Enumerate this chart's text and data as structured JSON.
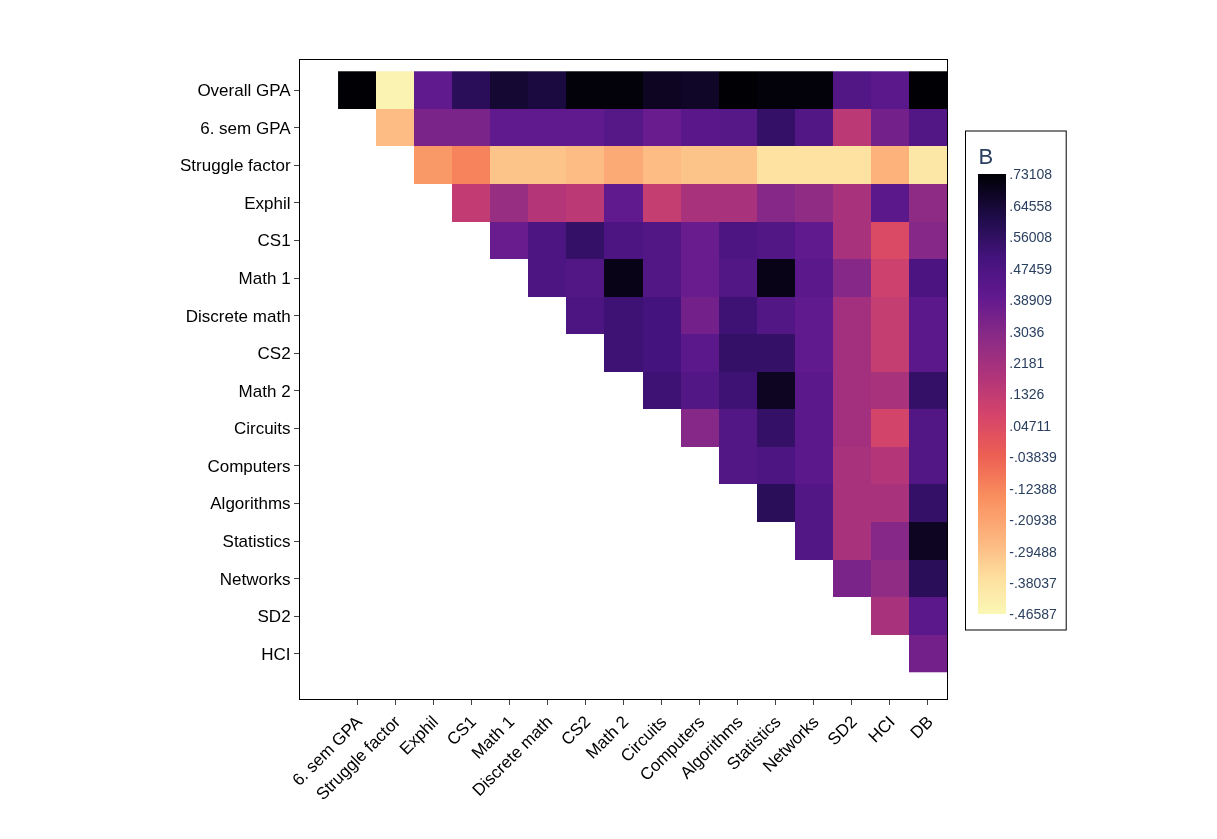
{
  "chart_data": {
    "type": "heatmap",
    "clabel": "B",
    "categories": [
      "6. sem GPA",
      "Struggle factor",
      "Exphil",
      "CS1",
      "Math 1",
      "Discrete math",
      "CS2",
      "Math 2",
      "Circuits",
      "Computers",
      "Algorithms",
      "Statistics",
      "Networks",
      "SD2",
      "HCI",
      "DB"
    ],
    "y_categories": [
      "Overall GPA",
      "6. sem GPA",
      "Struggle factor",
      "Exphil",
      "CS1",
      "Math 1",
      "Discrete math",
      "CS2",
      "Math 2",
      "Circuits",
      "Computers",
      "Algorithms",
      "Statistics",
      "Networks",
      "SD2",
      "HCI"
    ],
    "cells": [
      [
        0.73,
        -0.45,
        0.4,
        0.58,
        0.65,
        0.63,
        0.72,
        0.72,
        0.68,
        0.67,
        0.73,
        0.72,
        0.72,
        0.45,
        0.42,
        0.73
      ],
      [
        null,
        -0.28,
        0.33,
        0.33,
        0.4,
        0.4,
        0.4,
        0.44,
        0.38,
        0.43,
        0.44,
        0.55,
        0.45,
        0.15,
        0.35,
        0.45
      ],
      [
        null,
        null,
        -0.18,
        -0.12,
        -0.3,
        -0.3,
        -0.28,
        -0.23,
        -0.28,
        -0.3,
        -0.3,
        -0.38,
        -0.38,
        -0.38,
        -0.25,
        -0.4
      ],
      [
        null,
        null,
        null,
        0.13,
        0.25,
        0.17,
        0.15,
        0.4,
        0.12,
        0.2,
        0.2,
        0.3,
        0.27,
        0.2,
        0.42,
        0.28
      ],
      [
        null,
        null,
        null,
        null,
        0.38,
        0.47,
        0.55,
        0.47,
        0.45,
        0.38,
        0.47,
        0.45,
        0.4,
        0.2,
        0.05,
        0.3
      ],
      [
        null,
        null,
        null,
        null,
        null,
        0.47,
        0.45,
        0.7,
        0.45,
        0.38,
        0.45,
        0.7,
        0.42,
        0.3,
        0.1,
        0.48
      ],
      [
        null,
        null,
        null,
        null,
        null,
        null,
        0.47,
        0.52,
        0.5,
        0.35,
        0.52,
        0.45,
        0.4,
        0.22,
        0.12,
        0.42
      ],
      [
        null,
        null,
        null,
        null,
        null,
        null,
        null,
        0.52,
        0.5,
        0.42,
        0.55,
        0.55,
        0.4,
        0.22,
        0.12,
        0.42
      ],
      [
        null,
        null,
        null,
        null,
        null,
        null,
        null,
        null,
        0.52,
        0.45,
        0.52,
        0.68,
        0.42,
        0.22,
        0.2,
        0.55
      ],
      [
        null,
        null,
        null,
        null,
        null,
        null,
        null,
        null,
        null,
        0.3,
        0.45,
        0.55,
        0.42,
        0.22,
        0.08,
        0.45
      ],
      [
        null,
        null,
        null,
        null,
        null,
        null,
        null,
        null,
        null,
        null,
        0.45,
        0.47,
        0.42,
        0.2,
        0.17,
        0.45
      ],
      [
        null,
        null,
        null,
        null,
        null,
        null,
        null,
        null,
        null,
        null,
        null,
        0.58,
        0.45,
        0.2,
        0.2,
        0.55
      ],
      [
        null,
        null,
        null,
        null,
        null,
        null,
        null,
        null,
        null,
        null,
        null,
        null,
        0.45,
        0.2,
        0.3,
        0.68
      ],
      [
        null,
        null,
        null,
        null,
        null,
        null,
        null,
        null,
        null,
        null,
        null,
        null,
        null,
        0.33,
        0.27,
        0.58
      ],
      [
        null,
        null,
        null,
        null,
        null,
        null,
        null,
        null,
        null,
        null,
        null,
        null,
        null,
        null,
        0.2,
        0.42
      ],
      [
        null,
        null,
        null,
        null,
        null,
        null,
        null,
        null,
        null,
        null,
        null,
        null,
        null,
        null,
        null,
        0.35
      ]
    ],
    "clim": [
      -0.46587,
      0.73108
    ],
    "cticks": [
      {
        "value": 0.73108,
        "label": ".73108"
      },
      {
        "value": 0.64558,
        "label": ".64558"
      },
      {
        "value": 0.56008,
        "label": ".56008"
      },
      {
        "value": 0.47459,
        "label": ".47459"
      },
      {
        "value": 0.38909,
        "label": ".38909"
      },
      {
        "value": 0.3036,
        "label": ".3036"
      },
      {
        "value": 0.2181,
        "label": ".2181"
      },
      {
        "value": 0.1326,
        "label": ".1326"
      },
      {
        "value": 0.04711,
        "label": ".04711"
      },
      {
        "value": -0.03839,
        "label": "-.03839"
      },
      {
        "value": -0.12388,
        "label": "-.12388"
      },
      {
        "value": -0.20938,
        "label": "-.20938"
      },
      {
        "value": -0.29488,
        "label": "-.29488"
      },
      {
        "value": -0.38037,
        "label": "-.38037"
      },
      {
        "value": -0.46587,
        "label": "-.46587"
      }
    ]
  }
}
